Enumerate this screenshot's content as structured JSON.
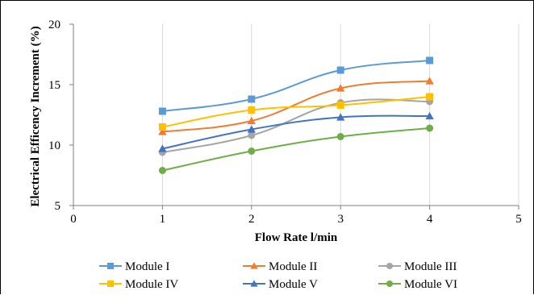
{
  "chart_data": {
    "type": "line",
    "xlabel": "Flow Rate l/min",
    "ylabel": "Electrical Efficency Increment (%)",
    "xlim": [
      0,
      5
    ],
    "ylim": [
      5,
      20
    ],
    "x_ticks": [
      "0",
      "1",
      "2",
      "3",
      "4",
      "5"
    ],
    "y_ticks": [
      "5",
      "10",
      "15",
      "20"
    ],
    "grid": "vertical",
    "legend_position": "bottom",
    "x": [
      1,
      2,
      3,
      4
    ],
    "series": [
      {
        "name": "Module I",
        "color": "#5B9BD5",
        "marker": "square",
        "values": [
          12.8,
          13.8,
          16.2,
          17.0
        ]
      },
      {
        "name": "Module II",
        "color": "#ED7D31",
        "marker": "triangle",
        "values": [
          11.1,
          12.0,
          14.7,
          15.3
        ]
      },
      {
        "name": "Module III",
        "color": "#A5A5A5",
        "marker": "circle",
        "values": [
          9.4,
          10.8,
          13.5,
          13.6
        ]
      },
      {
        "name": "Module IV",
        "color": "#FFC000",
        "marker": "square",
        "values": [
          11.5,
          12.9,
          13.3,
          14.0
        ]
      },
      {
        "name": "Module V",
        "color": "#4472C4",
        "marker": "triangle",
        "values": [
          9.7,
          11.3,
          12.3,
          12.4
        ]
      },
      {
        "name": "Module VI",
        "color": "#70AD47",
        "marker": "circle",
        "values": [
          7.9,
          9.5,
          10.7,
          11.4
        ]
      }
    ]
  }
}
